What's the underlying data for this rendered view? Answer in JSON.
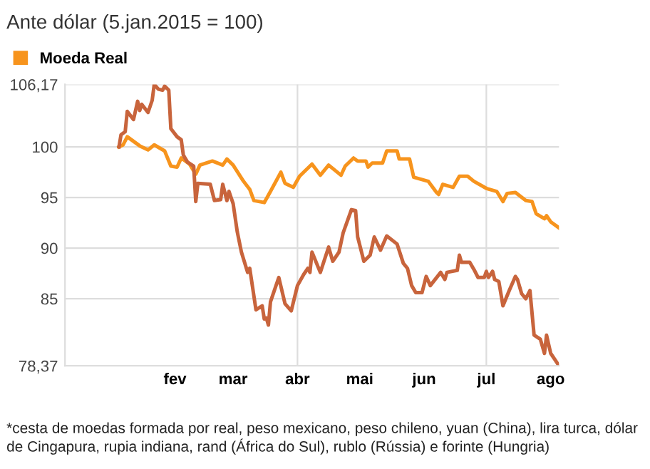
{
  "chart_data": {
    "type": "line",
    "title": "Ante dólar (5.jan.2015 = 100)",
    "annotations": [
      "*cesta de moedas formada por real, peso mexicano, peso chileno, yuan (China), lira turca, dólar de Cingapura, rupia indiana, rand (África do Sul), rublo (Rússia) e forinte (Hungria)"
    ],
    "series": [
      {
        "name": "Moeda Real",
        "color": "#f7941d",
        "x": [
          "2015-01-05",
          "2015-01-07",
          "2015-01-09",
          "2015-01-15",
          "2015-01-19",
          "2015-01-22",
          "2015-01-27",
          "2015-01-30",
          "2015-02-02",
          "2015-02-04",
          "2015-02-08",
          "2015-02-11",
          "2015-02-13",
          "2015-02-19",
          "2015-02-24",
          "2015-02-26",
          "2015-03-01",
          "2015-03-06",
          "2015-03-09",
          "2015-03-11",
          "2015-03-16",
          "2015-03-19",
          "2015-03-24",
          "2015-03-26",
          "2015-03-30",
          "2015-04-02",
          "2015-04-05",
          "2015-04-08",
          "2015-04-12",
          "2015-04-16",
          "2015-04-22",
          "2015-04-24",
          "2015-04-28",
          "2015-04-30",
          "2015-05-04",
          "2015-05-05",
          "2015-05-07",
          "2015-05-12",
          "2015-05-14",
          "2015-05-19",
          "2015-05-20",
          "2015-05-25",
          "2015-05-27",
          "2015-06-03",
          "2015-06-07",
          "2015-06-08",
          "2015-06-10",
          "2015-06-15",
          "2015-06-18",
          "2015-06-22",
          "2015-06-25",
          "2015-07-01",
          "2015-07-06",
          "2015-07-09",
          "2015-07-11",
          "2015-07-15",
          "2015-07-20",
          "2015-07-23",
          "2015-07-25",
          "2015-07-29",
          "2015-07-30",
          "2015-08-01",
          "2015-08-05"
        ],
        "values": [
          100,
          100.2,
          101.0,
          100.1,
          99.7,
          100.2,
          99.6,
          98.1,
          98.0,
          98.9,
          98.3,
          97.3,
          98.2,
          98.6,
          98.2,
          98.8,
          98.2,
          96.6,
          95.8,
          94.7,
          94.5,
          95.6,
          97.5,
          96.4,
          96.0,
          97.1,
          97.7,
          98.3,
          97.2,
          98.2,
          97.2,
          98.1,
          98.9,
          98.6,
          98.6,
          98.0,
          98.4,
          98.4,
          99.6,
          99.6,
          98.8,
          98.8,
          97.0,
          96.6,
          95.5,
          95.3,
          96.3,
          96.0,
          97.1,
          97.1,
          96.6,
          95.9,
          95.6,
          94.6,
          95.4,
          95.5,
          94.7,
          94.6,
          93.4,
          92.9,
          93.2,
          92.6,
          92.0
        ]
      },
      {
        "color": "#c8643c",
        "x": [
          "2015-01-05",
          "2015-01-06",
          "2015-01-08",
          "2015-01-09",
          "2015-01-12",
          "2015-01-14",
          "2015-01-15",
          "2015-01-16",
          "2015-01-19",
          "2015-01-21",
          "2015-01-22",
          "2015-01-24",
          "2015-01-26",
          "2015-01-27",
          "2015-01-29",
          "2015-01-30",
          "2015-02-02",
          "2015-02-04",
          "2015-02-05",
          "2015-02-07",
          "2015-02-10",
          "2015-02-11",
          "2015-02-12",
          "2015-02-18",
          "2015-02-20",
          "2015-02-23",
          "2015-02-24",
          "2015-02-26",
          "2015-02-27",
          "2015-03-01",
          "2015-03-03",
          "2015-03-05",
          "2015-03-08",
          "2015-03-09",
          "2015-03-12",
          "2015-03-15",
          "2015-03-16",
          "2015-03-17",
          "2015-03-18",
          "2015-03-19",
          "2015-03-23",
          "2015-03-26",
          "2015-03-29",
          "2015-04-01",
          "2015-04-04",
          "2015-04-06",
          "2015-04-07",
          "2015-04-08",
          "2015-04-12",
          "2015-04-16",
          "2015-04-18",
          "2015-04-21",
          "2015-04-23",
          "2015-04-27",
          "2015-04-29",
          "2015-04-30",
          "2015-05-03",
          "2015-05-06",
          "2015-05-08",
          "2015-05-11",
          "2015-05-14",
          "2015-05-19",
          "2015-05-22",
          "2015-05-24",
          "2015-05-26",
          "2015-05-28",
          "2015-05-31",
          "2015-06-02",
          "2015-06-04",
          "2015-06-09",
          "2015-06-11",
          "2015-06-12",
          "2015-06-17",
          "2015-06-18",
          "2015-06-19",
          "2015-06-23",
          "2015-06-25",
          "2015-06-27",
          "2015-06-30",
          "2015-07-01",
          "2015-07-02",
          "2015-07-04",
          "2015-07-05",
          "2015-07-07",
          "2015-07-09",
          "2015-07-12",
          "2015-07-15",
          "2015-07-16",
          "2015-07-18",
          "2015-07-20",
          "2015-07-22",
          "2015-07-24",
          "2015-07-27",
          "2015-07-29",
          "2015-07-30",
          "2015-08-01",
          "2015-08-03",
          "2015-08-05"
        ],
        "values": [
          100,
          101.2,
          101.5,
          103.5,
          102.7,
          104.5,
          103.6,
          104.2,
          103.4,
          104.6,
          106.17,
          105.7,
          105.6,
          106.0,
          105.6,
          101.8,
          101.0,
          100.7,
          99.2,
          98.5,
          98.1,
          94.6,
          96.4,
          96.3,
          94.7,
          94.8,
          96.3,
          94.7,
          95.6,
          94.4,
          91.6,
          89.6,
          87.6,
          88.0,
          83.9,
          84.3,
          83.0,
          83.1,
          82.4,
          84.7,
          87.1,
          84.5,
          83.8,
          86.3,
          87.4,
          88.0,
          87.6,
          89.6,
          87.6,
          90.1,
          88.7,
          89.6,
          91.5,
          93.8,
          93.7,
          91.1,
          88.7,
          89.3,
          91.1,
          89.8,
          91.2,
          90.4,
          88.5,
          88.0,
          86.3,
          85.6,
          85.6,
          87.2,
          86.3,
          87.6,
          86.9,
          87.6,
          87.8,
          89.3,
          88.6,
          88.6,
          87.9,
          87.1,
          87.1,
          87.7,
          87.1,
          87.7,
          86.9,
          86.7,
          84.3,
          85.8,
          87.2,
          86.9,
          85.5,
          85.0,
          85.8,
          81.4,
          81.0,
          79.6,
          81.4,
          79.6,
          79.0,
          78.37
        ]
      }
    ],
    "xlim": [
      "2014-12-10",
      "2015-08-05"
    ],
    "xticks": [
      {
        "value": "2015-02-01",
        "label": "fev"
      },
      {
        "value": "2015-03-01",
        "label": "mar"
      },
      {
        "value": "2015-04-01",
        "label": "abr"
      },
      {
        "value": "2015-05-01",
        "label": "mai"
      },
      {
        "value": "2015-06-01",
        "label": "jun"
      },
      {
        "value": "2015-07-01",
        "label": "jul"
      },
      {
        "value": "2015-08-01",
        "label": "ago"
      }
    ],
    "ylim": [
      78.37,
      106.17
    ],
    "yticks": [
      {
        "value": 78.37,
        "label": "78,37"
      },
      85,
      90,
      95,
      100,
      {
        "value": 106.17,
        "label": "106,17"
      }
    ],
    "ref_lines": [
      {
        "axis": "x",
        "value": "2015-04-01",
        "color": "#dddddd"
      },
      {
        "axis": "x",
        "value": "2015-07-01",
        "color": "#dddddd"
      }
    ],
    "grid": "y",
    "legend": "top left",
    "marker": "none",
    "line_style": "solid"
  }
}
